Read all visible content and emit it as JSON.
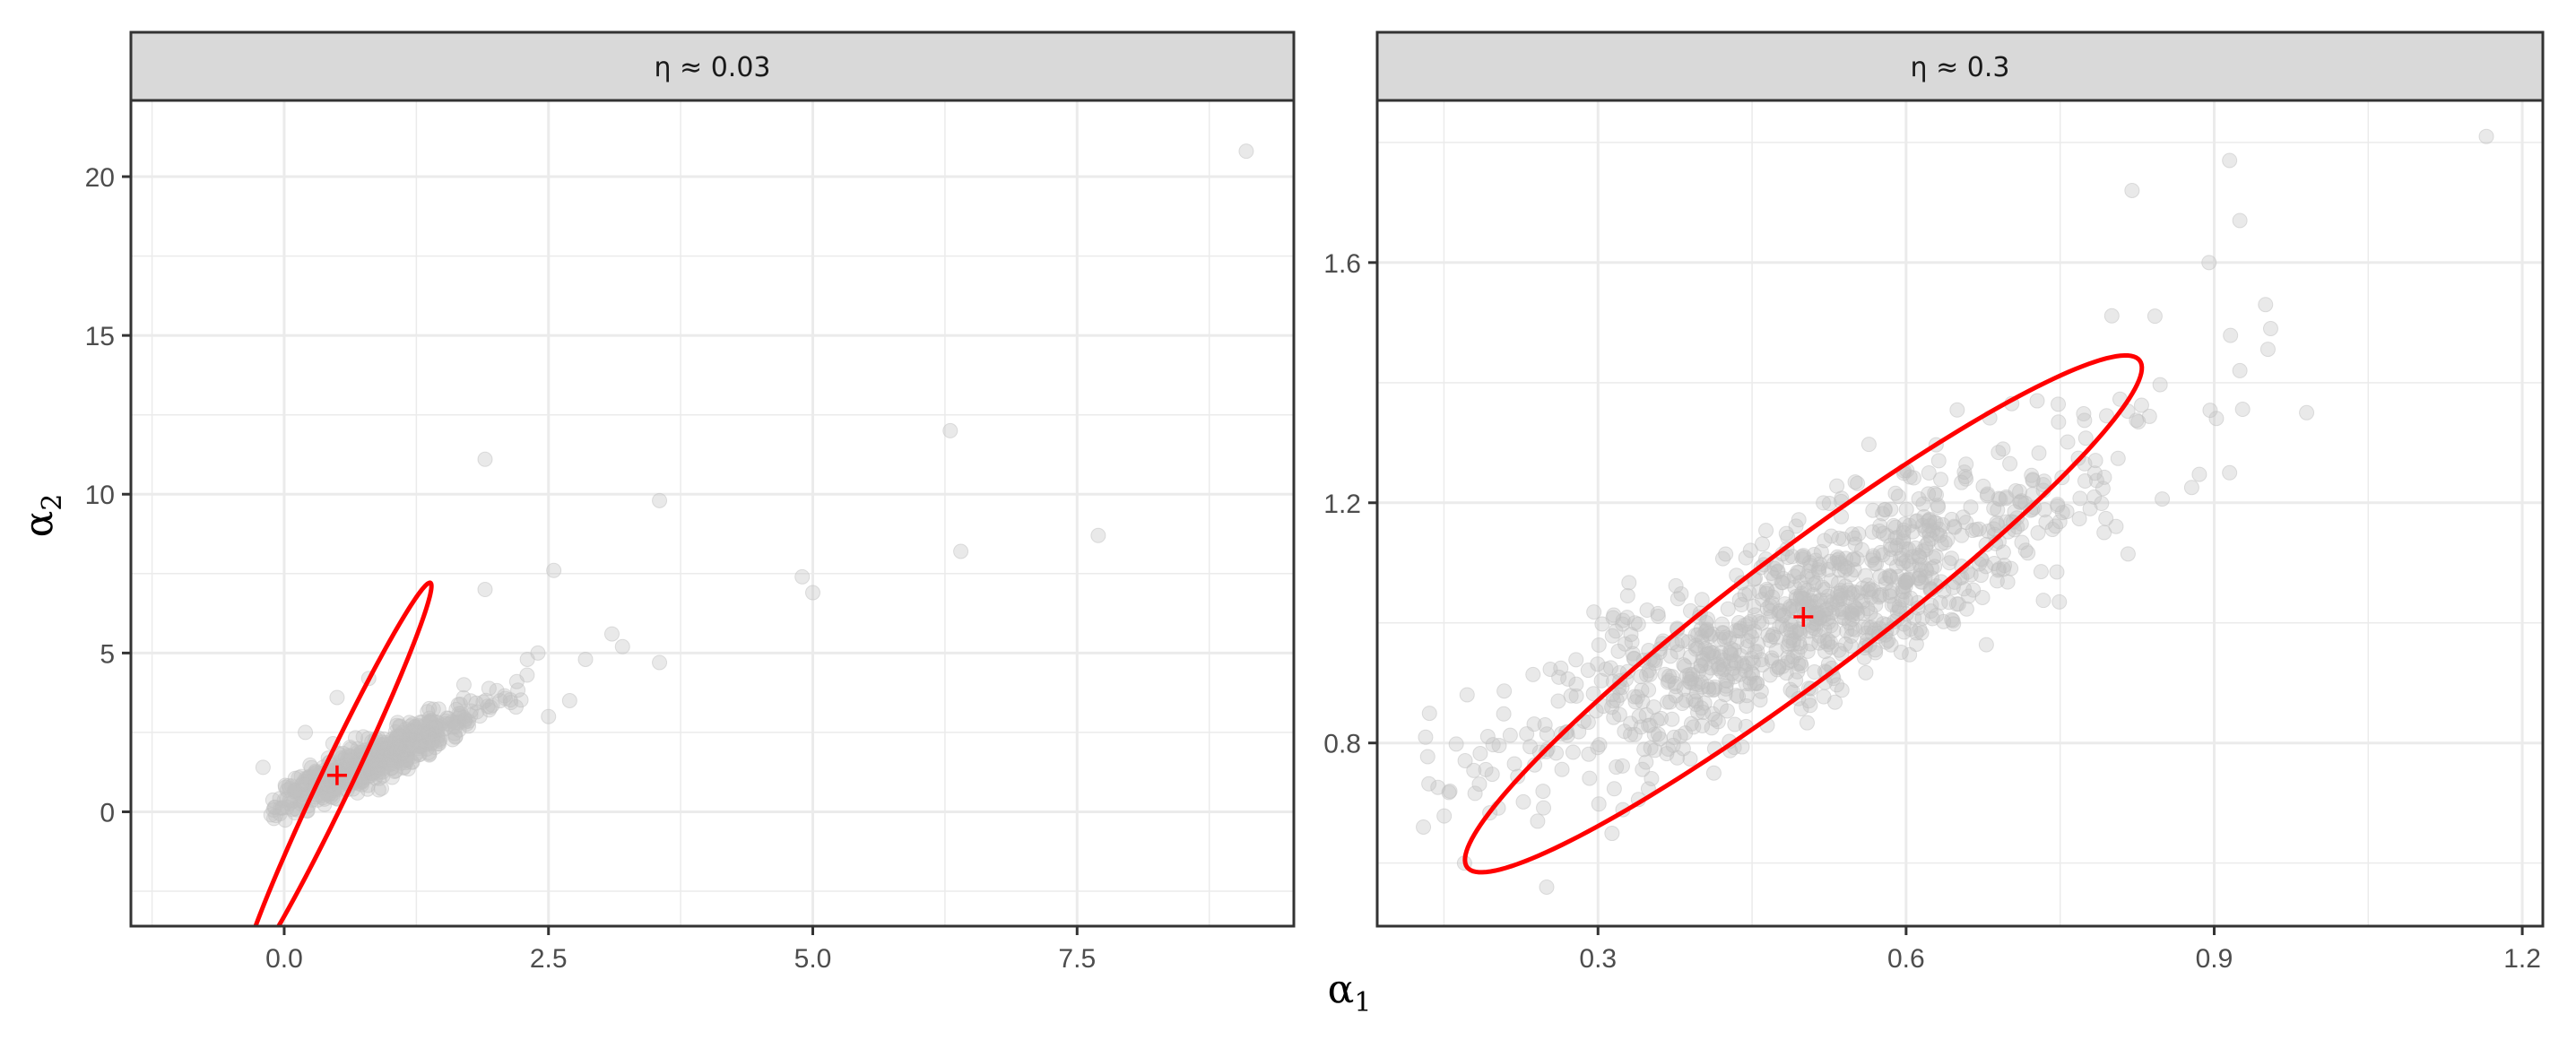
{
  "chart_data": [
    {
      "type": "scatter",
      "facet_label": "η ≈ 0.03",
      "xlim": [
        -1.45,
        9.55
      ],
      "ylim": [
        -3.6,
        22.4
      ],
      "x_ticks": [
        0.0,
        2.5,
        5.0,
        7.5
      ],
      "x_tick_labels": [
        "0.0",
        "2.5",
        "5.0",
        "7.5"
      ],
      "y_ticks": [
        0,
        5,
        10,
        15,
        20
      ],
      "y_tick_labels": [
        "0",
        "5",
        "10",
        "15",
        "20"
      ],
      "grid": true,
      "point_color": "#bfbfbf",
      "ellipse_color": "#ff0000",
      "center": [
        0.5,
        1.15
      ],
      "ellipse": {
        "cx": 0.5,
        "cy": 1.05,
        "rx": 2.05,
        "ry": 0.15,
        "angle": 64.5
      },
      "cluster": {
        "n": 650,
        "x_mean": 0.85,
        "x_sd": 0.45,
        "x_min": -0.15,
        "slope": 1.55,
        "intercept": 0.35,
        "resid_sd": 0.33,
        "seed": 7
      },
      "points": [
        [
          9.1,
          20.8
        ],
        [
          6.3,
          12.0
        ],
        [
          7.7,
          8.7
        ],
        [
          6.4,
          8.2
        ],
        [
          4.9,
          7.4
        ],
        [
          5.0,
          6.9
        ],
        [
          1.9,
          11.1
        ],
        [
          3.55,
          9.8
        ],
        [
          2.55,
          7.6
        ],
        [
          1.9,
          7.0
        ],
        [
          3.1,
          5.6
        ],
        [
          3.2,
          5.2
        ],
        [
          3.55,
          4.7
        ],
        [
          2.85,
          4.8
        ],
        [
          2.4,
          5.0
        ],
        [
          2.7,
          3.5
        ],
        [
          2.5,
          3.0
        ],
        [
          2.2,
          4.1
        ],
        [
          2.3,
          4.8
        ],
        [
          0.8,
          4.2
        ],
        [
          1.7,
          4.0
        ],
        [
          0.5,
          3.6
        ],
        [
          0.2,
          2.5
        ],
        [
          -0.2,
          1.4
        ]
      ]
    },
    {
      "type": "scatter",
      "facet_label": "η ≈ 0.3",
      "xlim": [
        0.085,
        1.22
      ],
      "ylim": [
        0.495,
        1.87
      ],
      "x_ticks": [
        0.3,
        0.6,
        0.9,
        1.2
      ],
      "x_tick_labels": [
        "0.3",
        "0.6",
        "0.9",
        "1.2"
      ],
      "y_ticks": [
        0.8,
        1.2,
        1.6
      ],
      "y_tick_labels": [
        "0.8",
        "1.2",
        "1.6"
      ],
      "grid": true,
      "point_color": "#bfbfbf",
      "ellipse_color": "#ff0000",
      "center": [
        0.5,
        1.01
      ],
      "ellipse": {
        "cx": 0.5,
        "cy": 1.015,
        "rx": 0.41,
        "ry": 0.062,
        "angle": 37
      },
      "cluster": {
        "n": 1000,
        "x_mean": 0.51,
        "x_sd": 0.14,
        "x_min": 0.12,
        "slope": 0.8,
        "intercept": 0.612,
        "resid_sd": 0.075,
        "seed": 11
      },
      "points": [
        [
          1.165,
          1.81
        ],
        [
          0.915,
          1.77
        ],
        [
          0.82,
          1.72
        ],
        [
          0.925,
          1.67
        ],
        [
          0.895,
          1.6
        ],
        [
          0.95,
          1.53
        ],
        [
          0.955,
          1.49
        ],
        [
          0.925,
          1.42
        ],
        [
          0.99,
          1.35
        ],
        [
          0.915,
          1.25
        ],
        [
          0.13,
          0.66
        ],
        [
          0.17,
          0.6
        ],
        [
          0.25,
          0.56
        ]
      ]
    }
  ],
  "x_title": {
    "symbol": "α",
    "sub": "1"
  },
  "y_title": {
    "symbol": "α",
    "sub": "2"
  }
}
